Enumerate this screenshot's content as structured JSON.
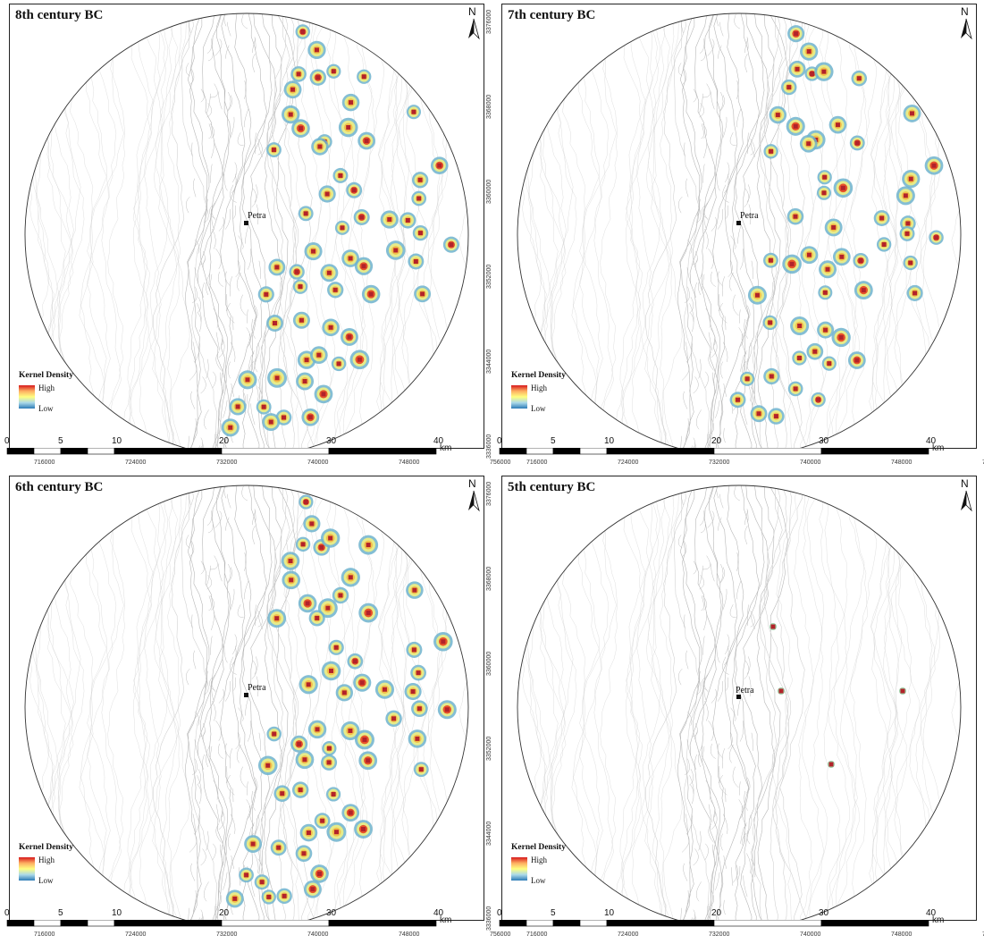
{
  "panels": [
    {
      "title": "8th century BC",
      "petra_label": "Petra"
    },
    {
      "title": "7th century BC",
      "petra_label": "Petra"
    },
    {
      "title": "6th century BC",
      "petra_label": "Petra"
    },
    {
      "title": "5th century BC",
      "petra_label": "Petra"
    }
  ],
  "north_label": "N",
  "legend": {
    "title": "Kernel Density",
    "high": "High",
    "low": "Low"
  },
  "scale_bar": {
    "labels": [
      "0",
      "5",
      "10",
      "20",
      "30",
      "40"
    ],
    "unit": "km"
  },
  "x_ticks": [
    "716000",
    "724000",
    "732000",
    "740000",
    "748000",
    "756000"
  ],
  "y_ticks": [
    "3376000",
    "3368000",
    "3360000",
    "3352000",
    "3344000",
    "3336000"
  ],
  "colors": {
    "high": "#d7191c",
    "mid": "#ffff80",
    "low": "#4a9fc6",
    "site": "#c0392b",
    "contour": "#c8c8c8"
  }
}
